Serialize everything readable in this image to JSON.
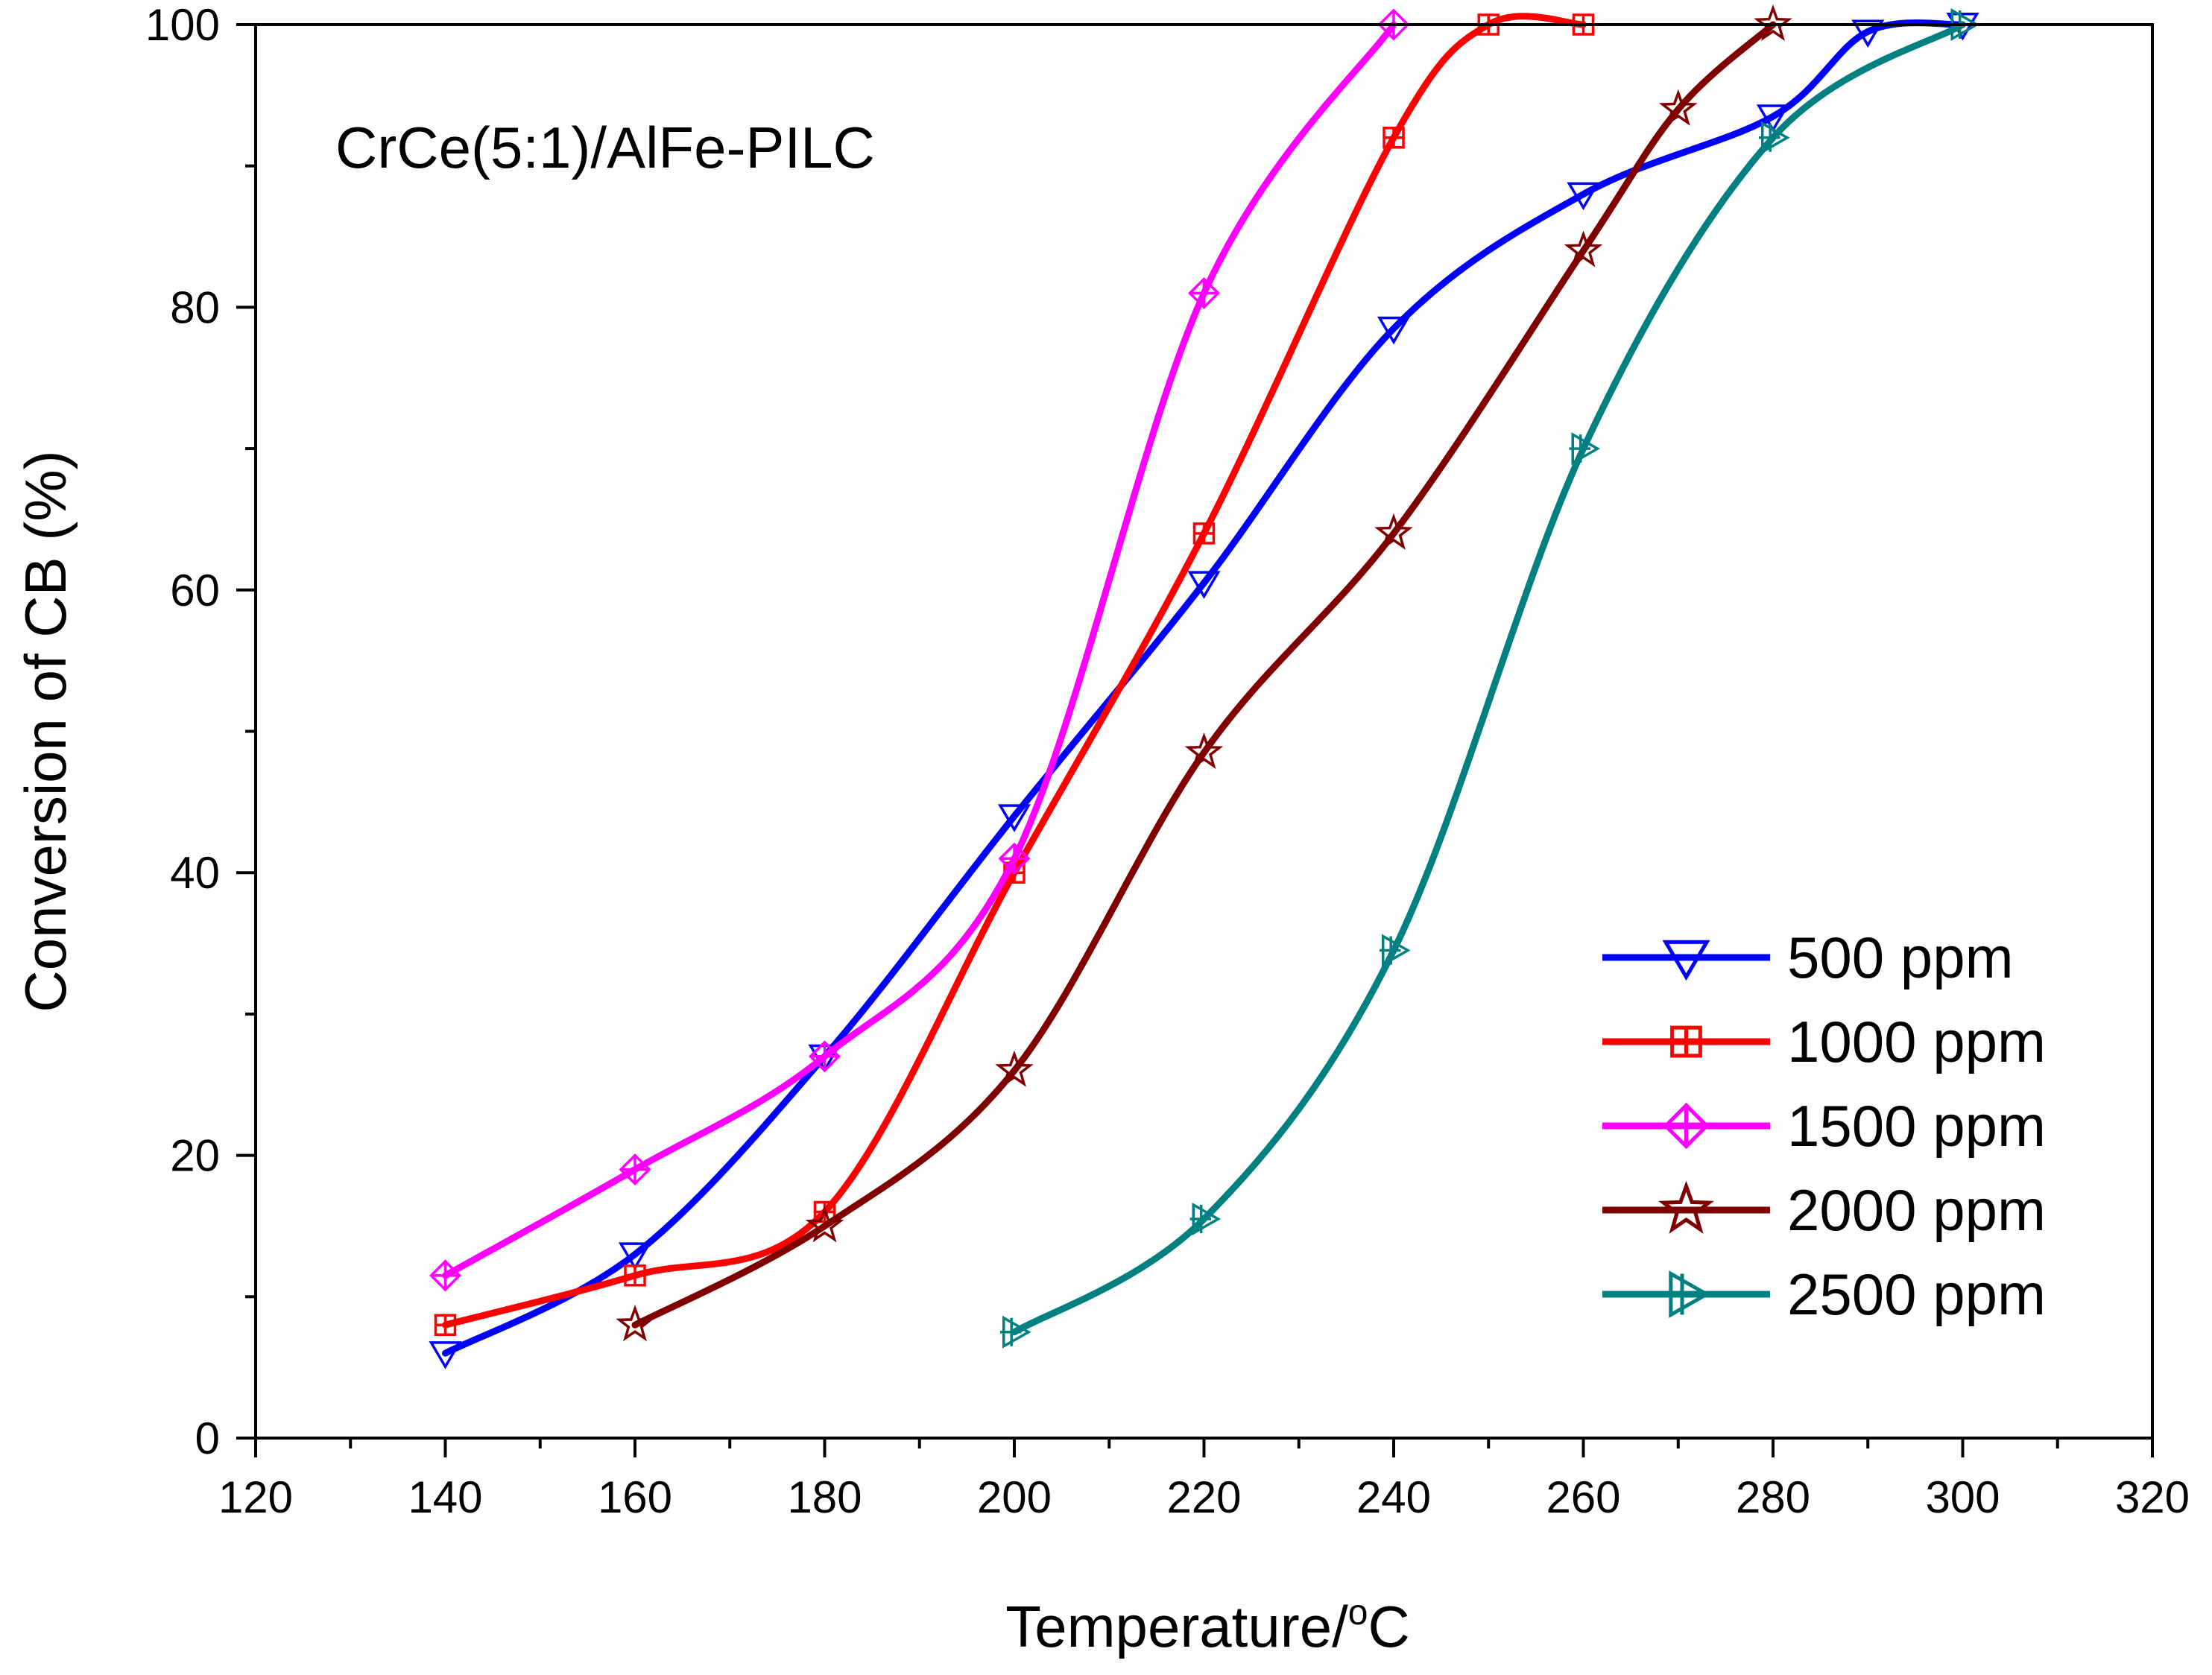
{
  "chart_data": {
    "type": "line",
    "title": "CrCe(5:1)/AlFe-PILC",
    "xlabel_base": "Temperature/",
    "xlabel_sup": "o",
    "xlabel_unit": "C",
    "ylabel": "Conversion of CB (%)",
    "xlim": [
      120,
      320
    ],
    "ylim": [
      0,
      100
    ],
    "x_ticks": [
      120,
      140,
      160,
      180,
      200,
      220,
      240,
      260,
      280,
      300,
      320
    ],
    "y_ticks": [
      0,
      20,
      40,
      60,
      80,
      100
    ],
    "legend_position": "bottom-right",
    "series": [
      {
        "name": "500 ppm",
        "color": "#0000ff",
        "marker": "triangle-down",
        "x": [
          140,
          160,
          180,
          200,
          220,
          240,
          260,
          280,
          290,
          300
        ],
        "y": [
          6,
          13,
          27,
          44,
          60.5,
          78.5,
          88,
          93.5,
          99.5,
          100
        ]
      },
      {
        "name": "1000 ppm",
        "color": "#ff0000",
        "marker": "square-cross",
        "x": [
          140,
          160,
          180,
          200,
          220,
          240,
          250,
          260
        ],
        "y": [
          8,
          11.5,
          16,
          40,
          64,
          92,
          100,
          100
        ]
      },
      {
        "name": "1500 ppm",
        "color": "#ff00ff",
        "marker": "diamond-cross",
        "x": [
          140,
          160,
          180,
          200,
          220,
          240
        ],
        "y": [
          11.5,
          19,
          27,
          41,
          81,
          100
        ]
      },
      {
        "name": "2000 ppm",
        "color": "#800000",
        "marker": "star",
        "x": [
          160,
          180,
          200,
          220,
          240,
          260,
          270,
          280
        ],
        "y": [
          8,
          15,
          26,
          48.5,
          64,
          84,
          94,
          100
        ]
      },
      {
        "name": "2500 ppm",
        "color": "#008080",
        "marker": "triangle-right-cross",
        "x": [
          200,
          220,
          240,
          260,
          280,
          300
        ],
        "y": [
          7.5,
          15.5,
          34.5,
          70,
          92,
          100
        ]
      }
    ]
  }
}
